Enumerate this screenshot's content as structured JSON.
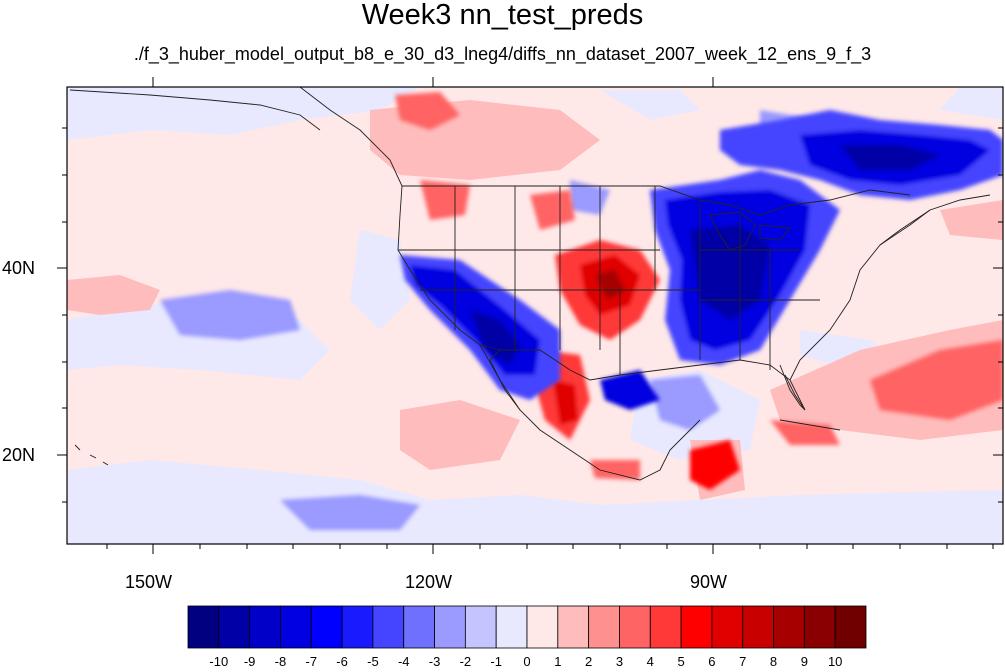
{
  "title": "Week3 nn_test_preds",
  "subtitle": "./f_3_huber_model_output_b8_e_30_d3_lneg4/diffs_nn_dataset_2007_week_12_ens_9_f_3",
  "axes": {
    "lon_labels": [
      "150W",
      "120W",
      "90W"
    ],
    "lat_labels": [
      "40N",
      "20N"
    ],
    "lon_range": [
      -159.3,
      -60.7
    ],
    "lat_range": [
      11.0,
      59.0
    ]
  },
  "colorbar": {
    "labels": [
      "-10",
      "-9",
      "-8",
      "-7",
      "-6",
      "-5",
      "-4",
      "-3",
      "-2",
      "-1",
      "0",
      "1",
      "2",
      "3",
      "4",
      "5",
      "6",
      "7",
      "8",
      "9",
      "10"
    ],
    "colors": [
      "#000080",
      "#0000a6",
      "#0000c8",
      "#0000e0",
      "#0000ff",
      "#1a1aff",
      "#4545ff",
      "#7070ff",
      "#9a9aff",
      "#c4c4ff",
      "#e8e8ff",
      "#ffe8e8",
      "#ffbcbc",
      "#ff9090",
      "#ff6464",
      "#ff3838",
      "#ff0000",
      "#e00000",
      "#c80000",
      "#a60000",
      "#8a0000",
      "#700000"
    ]
  },
  "colors": {
    "background_field": "#ffe8e8",
    "light_blue": "#e8e8ff",
    "outline": "#222222"
  }
}
